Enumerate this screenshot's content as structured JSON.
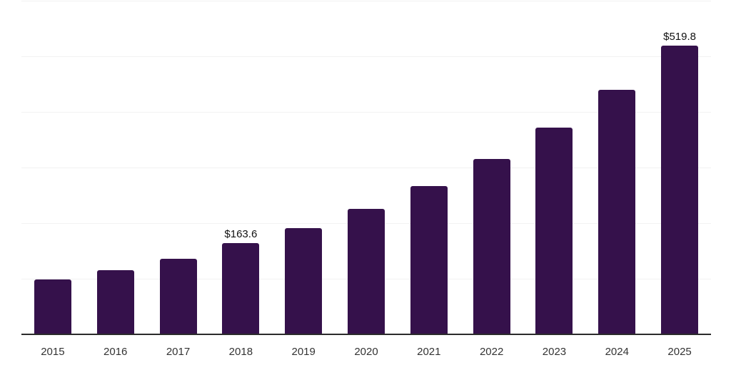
{
  "chart_data": {
    "type": "bar",
    "title": "",
    "xlabel": "",
    "ylabel": "",
    "categories": [
      "2015",
      "2016",
      "2017",
      "2018",
      "2019",
      "2020",
      "2021",
      "2022",
      "2023",
      "2024",
      "2025"
    ],
    "values": [
      98.4,
      115.0,
      136.3,
      163.6,
      190.9,
      225.9,
      266.5,
      314.8,
      371.6,
      439.9,
      519.8
    ],
    "data_labels": [
      {
        "category": "2018",
        "text": "$163.6"
      },
      {
        "category": "2025",
        "text": "$519.8"
      }
    ],
    "ylim": [
      0,
      600
    ],
    "gridline_step": 100,
    "grid": "horizontal",
    "legend": "none",
    "colors": {
      "bar": "#35114B",
      "axis_line": "#2B2B2B",
      "gridline": "#F2F2F2",
      "tick_label": "#333333",
      "data_label": "#111111",
      "background": "#FFFFFF"
    }
  }
}
